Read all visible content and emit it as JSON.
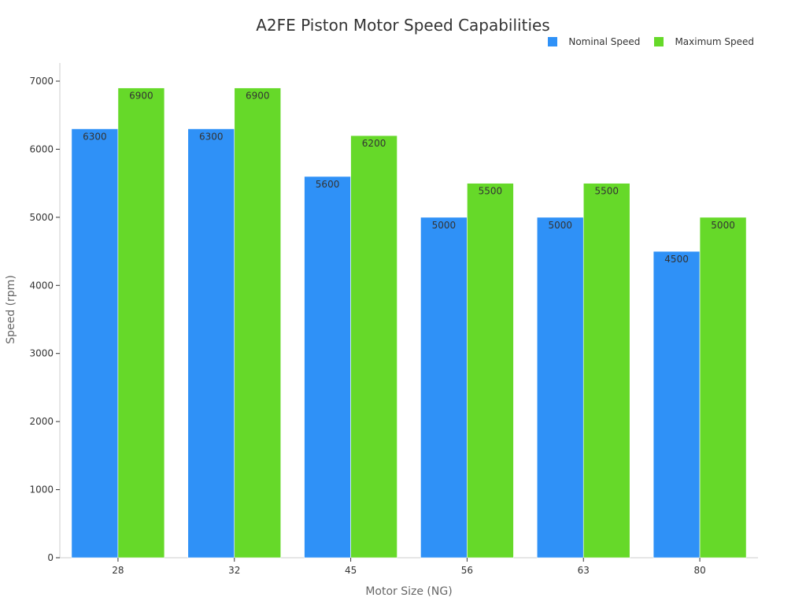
{
  "chart_data": {
    "type": "bar",
    "title": "A2FE Piston Motor Speed Capabilities",
    "xlabel": "Motor Size (NG)",
    "ylabel": "Speed (rpm)",
    "categories": [
      "28",
      "32",
      "45",
      "56",
      "63",
      "80"
    ],
    "series": [
      {
        "name": "Nominal Speed",
        "color": "#2f91f7",
        "values": [
          6300,
          6300,
          5600,
          5000,
          5000,
          4500
        ]
      },
      {
        "name": "Maximum Speed",
        "color": "#66d929",
        "values": [
          6900,
          6900,
          6200,
          5500,
          5500,
          5000
        ]
      }
    ],
    "ylim": [
      0,
      7000
    ],
    "yticks": [
      0,
      1000,
      2000,
      3000,
      4000,
      5000,
      6000,
      7000
    ],
    "grid": false,
    "legend_position": "top-right",
    "data_labels": true
  },
  "legend": {
    "items": [
      {
        "label": "Nominal Speed",
        "color": "#2f91f7"
      },
      {
        "label": "Maximum Speed",
        "color": "#66d929"
      }
    ]
  }
}
